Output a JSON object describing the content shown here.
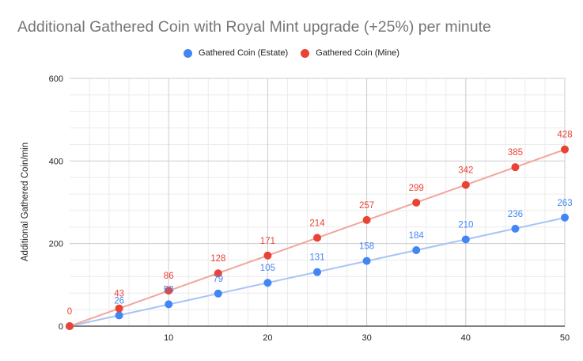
{
  "chart_data": {
    "type": "scatter",
    "title": "Additional Gathered Coin with Royal Mint upgrade (+25%) per minute",
    "xlabel": "",
    "ylabel": "Additional Gathered Coin/min",
    "xlim": [
      0,
      50
    ],
    "ylim": [
      0,
      600
    ],
    "x_ticks": [
      10,
      20,
      30,
      40,
      50
    ],
    "y_ticks": [
      0,
      200,
      400,
      600
    ],
    "x_minor_step": 2,
    "y_minor_step": 40,
    "grid": true,
    "legend_position": "top",
    "trendlines": true,
    "x": [
      0,
      5,
      10,
      15,
      20,
      25,
      30,
      35,
      40,
      45,
      50
    ],
    "series": [
      {
        "name": "Gathered Coin (Estate)",
        "color": "#4285f4",
        "trend_color": "#a9c4f5",
        "values": [
          0,
          26,
          53,
          79,
          105,
          131,
          158,
          184,
          210,
          236,
          263
        ],
        "labels": [
          "",
          "26",
          "53",
          "79",
          "105",
          "131",
          "158",
          "184",
          "210",
          "236",
          "263"
        ]
      },
      {
        "name": "Gathered Coin (Mine)",
        "color": "#ea4335",
        "trend_color": "#f2a59e",
        "values": [
          0,
          43,
          86,
          128,
          171,
          214,
          257,
          299,
          342,
          385,
          428
        ],
        "labels": [
          "0",
          "43",
          "86",
          "128",
          "171",
          "214",
          "257",
          "299",
          "342",
          "385",
          "428"
        ]
      }
    ]
  }
}
